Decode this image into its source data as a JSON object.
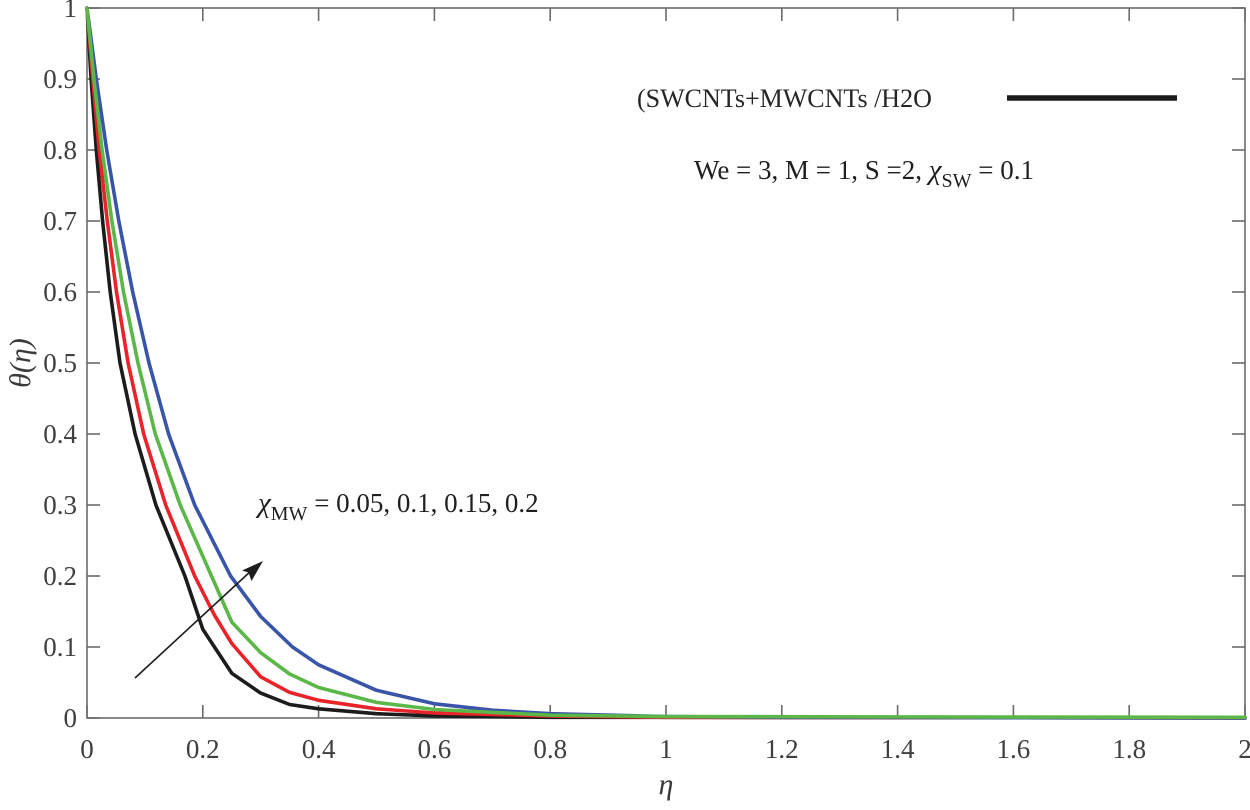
{
  "figure": {
    "background": "#ffffff",
    "legend": {
      "label": "(SWCNTs+MWCNTs /H2O",
      "line_color": "#1c1c1c"
    },
    "params_line": {
      "prefix": "We = 3,  M = 1, S =2, ",
      "chi": "χ",
      "subscript": "SW",
      "suffix": " = 0.1"
    },
    "arrow_annotation": {
      "chi": "χ",
      "subscript": "MW",
      "suffix": " = 0.05, 0.1, 0.15, 0.2"
    },
    "axis_color": "#6b6b6b",
    "tick_label_color": "#3f3f3f"
  },
  "chart_data": {
    "type": "line",
    "title": "",
    "xlabel": "η",
    "ylabel": "θ(η)",
    "xlim": [
      0,
      2
    ],
    "ylim": [
      0,
      1
    ],
    "grid": false,
    "box": true,
    "tick_direction": "in",
    "legend_position": "top-right-inside",
    "x_ticks": [
      0,
      0.2,
      0.4,
      0.6,
      0.8,
      1,
      1.2,
      1.4,
      1.6,
      1.8,
      2
    ],
    "x_tick_labels": [
      "0",
      "0.2",
      "0.4",
      "0.6",
      "0.8",
      "1",
      "1.2",
      "1.4",
      "1.6",
      "1.8",
      "2"
    ],
    "y_ticks": [
      0,
      0.1,
      0.2,
      0.3,
      0.4,
      0.5,
      0.6,
      0.7,
      0.8,
      0.9,
      1
    ],
    "y_tick_labels": [
      "0",
      "0.1",
      "0.2",
      "0.3",
      "0.4",
      "0.5",
      "0.6",
      "0.7",
      "0.8",
      "0.9",
      "1"
    ],
    "draw_order": [
      0,
      1,
      3,
      2
    ],
    "series": [
      {
        "name": "chi_MW = 0.05",
        "color": "#1c1c1c",
        "points": [
          [
            0,
            1
          ],
          [
            0.007,
            0.9
          ],
          [
            0.016,
            0.8
          ],
          [
            0.027,
            0.7
          ],
          [
            0.04,
            0.6
          ],
          [
            0.057,
            0.5
          ],
          [
            0.083,
            0.4
          ],
          [
            0.119,
            0.3
          ],
          [
            0.169,
            0.2
          ],
          [
            0.2,
            0.125
          ],
          [
            0.25,
            0.063
          ],
          [
            0.3,
            0.035
          ],
          [
            0.35,
            0.019
          ],
          [
            0.4,
            0.013
          ],
          [
            0.5,
            0.006
          ],
          [
            0.6,
            0.003
          ],
          [
            0.8,
            0.001
          ],
          [
            1,
            0.001
          ],
          [
            2,
            0
          ]
        ]
      },
      {
        "name": "chi_MW = 0.1",
        "color": "#e8232a",
        "points": [
          [
            0,
            1
          ],
          [
            0.01,
            0.9
          ],
          [
            0.021,
            0.8
          ],
          [
            0.035,
            0.7
          ],
          [
            0.051,
            0.6
          ],
          [
            0.071,
            0.5
          ],
          [
            0.098,
            0.4
          ],
          [
            0.136,
            0.3
          ],
          [
            0.186,
            0.2
          ],
          [
            0.22,
            0.145
          ],
          [
            0.25,
            0.105
          ],
          [
            0.3,
            0.058
          ],
          [
            0.35,
            0.036
          ],
          [
            0.4,
            0.025
          ],
          [
            0.5,
            0.013
          ],
          [
            0.6,
            0.007
          ],
          [
            0.8,
            0.003
          ],
          [
            1,
            0.001
          ],
          [
            2,
            0
          ]
        ]
      },
      {
        "name": "chi_MW = 0.15",
        "color": "#5bb748",
        "points": [
          [
            0,
            1
          ],
          [
            0.012,
            0.9
          ],
          [
            0.026,
            0.8
          ],
          [
            0.043,
            0.7
          ],
          [
            0.063,
            0.6
          ],
          [
            0.088,
            0.5
          ],
          [
            0.118,
            0.4
          ],
          [
            0.161,
            0.3
          ],
          [
            0.215,
            0.2
          ],
          [
            0.25,
            0.135
          ],
          [
            0.3,
            0.092
          ],
          [
            0.35,
            0.062
          ],
          [
            0.4,
            0.043
          ],
          [
            0.5,
            0.022
          ],
          [
            0.6,
            0.012
          ],
          [
            0.8,
            0.004
          ],
          [
            1,
            0.002
          ],
          [
            2,
            0.001
          ]
        ]
      },
      {
        "name": "chi_MW = 0.2",
        "color": "#3a55a8",
        "points": [
          [
            0,
            1
          ],
          [
            0.016,
            0.9
          ],
          [
            0.034,
            0.8
          ],
          [
            0.055,
            0.7
          ],
          [
            0.079,
            0.6
          ],
          [
            0.107,
            0.5
          ],
          [
            0.141,
            0.4
          ],
          [
            0.186,
            0.3
          ],
          [
            0.248,
            0.2
          ],
          [
            0.3,
            0.143
          ],
          [
            0.355,
            0.1
          ],
          [
            0.4,
            0.075
          ],
          [
            0.5,
            0.039
          ],
          [
            0.6,
            0.02
          ],
          [
            0.7,
            0.011
          ],
          [
            0.8,
            0.006
          ],
          [
            1,
            0.002
          ],
          [
            1.2,
            0.001
          ],
          [
            2,
            0
          ]
        ]
      }
    ]
  }
}
